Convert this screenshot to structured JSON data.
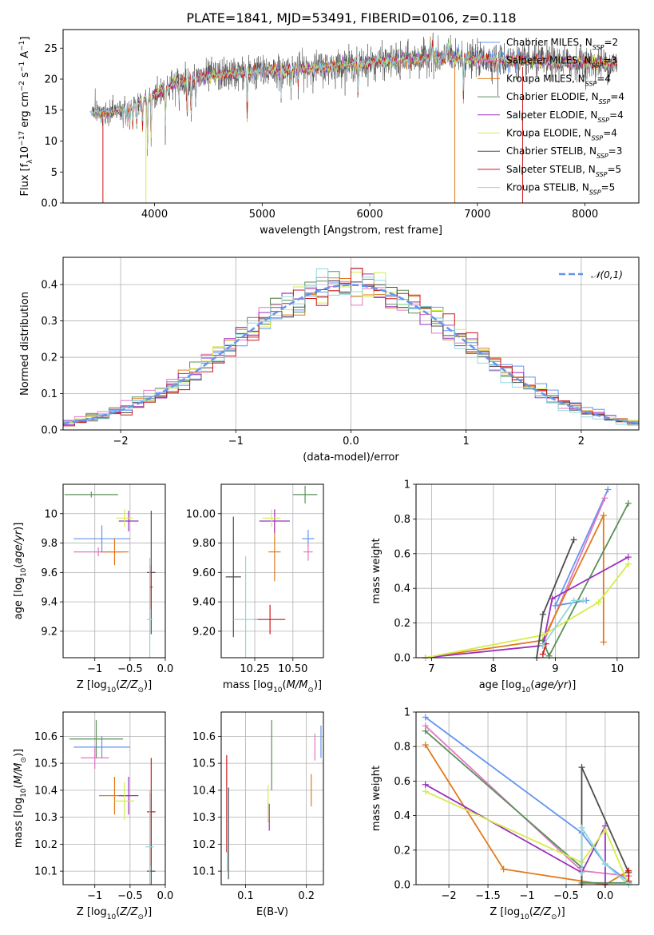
{
  "figure_title": "PLATE=1841, MJD=53491, FIBERID=0106, z=0.118",
  "models": [
    {
      "name": "Chabrier MILES",
      "nssp": "2",
      "color": "#6495ed"
    },
    {
      "name": "Salpeter MILES",
      "nssp": "3",
      "color": "#e377c2"
    },
    {
      "name": "Kroupa MILES",
      "nssp": "4",
      "color": "#e07b1b"
    },
    {
      "name": "Chabrier ELODIE",
      "nssp": "4",
      "color": "#5b8f5b"
    },
    {
      "name": "Salpeter ELODIE",
      "nssp": "4",
      "color": "#9b30c0"
    },
    {
      "name": "Kroupa ELODIE",
      "nssp": "4",
      "color": "#d4ed4a"
    },
    {
      "name": "Chabrier STELIB",
      "nssp": "3",
      "color": "#4d4d4d"
    },
    {
      "name": "Salpeter STELIB",
      "nssp": "5",
      "color": "#cc1818"
    },
    {
      "name": "Kroupa STELIB",
      "nssp": "5",
      "color": "#8fd7de"
    }
  ],
  "chart_data": [
    {
      "id": "spectrum",
      "type": "line",
      "xlabel": "wavelength [Angstrom, rest frame]",
      "ylabel": "Flux [f",
      "xlim": [
        3150,
        8500
      ],
      "ylim": [
        0,
        28
      ],
      "xticks": [
        4000,
        5000,
        6000,
        7000,
        8000
      ],
      "yticks": [
        0,
        5,
        10,
        15,
        20,
        25
      ],
      "grid": false,
      "legend": "top-right",
      "continuum": [
        [
          3400,
          14.8
        ],
        [
          3600,
          14.5
        ],
        [
          3800,
          15.6
        ],
        [
          4000,
          17.5
        ],
        [
          4200,
          19.4
        ],
        [
          4500,
          20.5
        ],
        [
          5000,
          21.3
        ],
        [
          5500,
          21.8
        ],
        [
          6000,
          22.6
        ],
        [
          6500,
          23.3
        ],
        [
          7000,
          23.2
        ],
        [
          7500,
          22.9
        ],
        [
          8000,
          22.6
        ],
        [
          8300,
          22.4
        ]
      ],
      "absorption_lines": [
        [
          3705,
          13.5
        ],
        [
          3734,
          13.2
        ],
        [
          3750,
          12.8
        ],
        [
          3771,
          12.6
        ],
        [
          3798,
          12.5
        ],
        [
          3835,
          12.4
        ],
        [
          3889,
          11.5
        ],
        [
          3934,
          8.6
        ],
        [
          3968,
          9.6
        ],
        [
          4101,
          12.8
        ],
        [
          4227,
          16.5
        ],
        [
          4304,
          13.5
        ],
        [
          4340,
          13.8
        ],
        [
          4383,
          16.0
        ],
        [
          4861,
          13.5
        ],
        [
          5015,
          19.8
        ],
        [
          5175,
          17.2
        ],
        [
          5270,
          18.5
        ],
        [
          5335,
          19.0
        ],
        [
          5890,
          17.5
        ],
        [
          6280,
          20.2
        ],
        [
          6870,
          17.0
        ],
        [
          7190,
          19.6
        ]
      ],
      "emission_lines": [
        [
          6563,
          26.5
        ],
        [
          6583,
          26.0
        ],
        [
          6716,
          25.8
        ],
        [
          6731,
          25.9
        ]
      ],
      "dropouts": [
        3520,
        3920,
        6790,
        7420
      ]
    },
    {
      "id": "residuals",
      "type": "step",
      "xlabel": "(data-model)/error",
      "ylabel": "Normed distribution",
      "xlim": [
        -2.5,
        2.5
      ],
      "ylim": [
        0,
        0.475
      ],
      "xticks": [
        -2,
        -1,
        0,
        1,
        2
      ],
      "yticks": [
        0.0,
        0.1,
        0.2,
        0.3,
        0.4
      ],
      "grid": true,
      "legend": "top-right",
      "normal_curve": {
        "mean": 0,
        "sigma": 1,
        "label": "𝒩(0,1)",
        "color": "#6495ed"
      }
    },
    {
      "id": "age-vs-Z",
      "type": "errorbar",
      "xlabel": "Z [log",
      "ylabel": "age  [log",
      "xlim": [
        -1.45,
        0.0
      ],
      "ylim": [
        9.02,
        10.2
      ],
      "xticks": [
        -1.0,
        -0.5,
        0.0
      ],
      "yticks": [
        9.2,
        9.4,
        9.6,
        9.8,
        10.0
      ],
      "grid": true,
      "points": [
        {
          "m": 0,
          "x": -0.9,
          "xe": 0.4,
          "y": 9.83,
          "ye": 0.09
        },
        {
          "m": 1,
          "x": -0.95,
          "xe": 0.35,
          "y": 9.74,
          "ye": 0.03
        },
        {
          "m": 2,
          "x": -0.72,
          "xe": 0.2,
          "y": 9.74,
          "ye": 0.09
        },
        {
          "m": 3,
          "x": -1.05,
          "xe": 0.38,
          "y": 10.13,
          "ye": 0.02
        },
        {
          "m": 4,
          "x": -0.52,
          "xe": 0.14,
          "y": 9.95,
          "ye": 0.07
        },
        {
          "m": 5,
          "x": -0.58,
          "xe": 0.12,
          "y": 9.97,
          "ye": 0.06
        },
        {
          "m": 6,
          "x": -0.2,
          "xe": 0.06,
          "y": 9.6,
          "ye": 0.42
        },
        {
          "m": 7,
          "x": -0.2,
          "xe": 0.02,
          "y": 9.5,
          "ye": 0.15
        },
        {
          "m": 8,
          "x": -0.22,
          "xe": 0.04,
          "y": 9.28,
          "ye": 0.42
        }
      ]
    },
    {
      "id": "age-vs-mass",
      "type": "errorbar",
      "xlabel": "mass [log",
      "ylabel": "",
      "xlim": [
        10.03,
        10.7
      ],
      "ylim": [
        9.02,
        10.2
      ],
      "xticks": [
        10.25,
        10.5
      ],
      "yticks": [
        9.2,
        9.4,
        9.6,
        9.8,
        10.0
      ],
      "grid": true,
      "points": [
        {
          "m": 0,
          "x": 10.6,
          "xe": 0.04,
          "y": 9.83,
          "ye": 0.06
        },
        {
          "m": 1,
          "x": 10.6,
          "xe": 0.03,
          "y": 9.74,
          "ye": 0.06
        },
        {
          "m": 2,
          "x": 10.38,
          "xe": 0.04,
          "y": 9.74,
          "ye": 0.2
        },
        {
          "m": 3,
          "x": 10.58,
          "xe": 0.08,
          "y": 10.13,
          "ye": 0.06
        },
        {
          "m": 4,
          "x": 10.38,
          "xe": 0.1,
          "y": 9.95,
          "ye": 0.08
        },
        {
          "m": 5,
          "x": 10.36,
          "xe": 0.06,
          "y": 9.97,
          "ye": 0.06
        },
        {
          "m": 6,
          "x": 10.11,
          "xe": 0.05,
          "y": 9.57,
          "ye": 0.41
        },
        {
          "m": 7,
          "x": 10.35,
          "xe": 0.1,
          "y": 9.28,
          "ye": 0.1
        },
        {
          "m": 8,
          "x": 10.19,
          "xe": 0.08,
          "y": 9.28,
          "ye": 0.43
        }
      ]
    },
    {
      "id": "weight-vs-age",
      "type": "line",
      "xlabel": "age  [log",
      "ylabel": "mass weight",
      "xlim": [
        6.75,
        10.35
      ],
      "ylim": [
        0,
        1
      ],
      "xticks": [
        7,
        8,
        9,
        10
      ],
      "yticks": [
        0.0,
        0.2,
        0.4,
        0.6,
        0.8,
        1.0
      ],
      "grid": true,
      "series": [
        {
          "m": 0,
          "x": [
            9.5,
            9.0,
            9.85
          ],
          "y": [
            0.33,
            0.3,
            0.97
          ]
        },
        {
          "m": 1,
          "x": [
            8.8,
            9.8
          ],
          "y": [
            0.08,
            0.92
          ]
        },
        {
          "m": 2,
          "x": [
            6.9,
            8.8,
            9.78,
            9.78
          ],
          "y": [
            0.0,
            0.1,
            0.82,
            0.09
          ]
        },
        {
          "m": 3,
          "x": [
            8.8,
            8.9,
            10.18
          ],
          "y": [
            0.1,
            0.01,
            0.89
          ]
        },
        {
          "m": 4,
          "x": [
            6.9,
            8.8,
            8.95,
            10.18
          ],
          "y": [
            0.0,
            0.07,
            0.34,
            0.58
          ]
        },
        {
          "m": 5,
          "x": [
            6.9,
            8.8,
            9.7,
            10.18
          ],
          "y": [
            0.0,
            0.13,
            0.32,
            0.54
          ]
        },
        {
          "m": 6,
          "x": [
            8.7,
            8.8,
            9.3
          ],
          "y": [
            0.0,
            0.25,
            0.68
          ]
        },
        {
          "m": 7,
          "x": [
            8.8,
            8.85
          ],
          "y": [
            0.02,
            0.08
          ]
        },
        {
          "m": 8,
          "x": [
            8.8,
            9.3,
            9.45
          ],
          "y": [
            0.07,
            0.33,
            0.33
          ]
        }
      ]
    },
    {
      "id": "mass-vs-Z",
      "type": "errorbar",
      "xlabel": "Z [log",
      "ylabel": "mass [log",
      "xlim": [
        -1.45,
        0.0
      ],
      "ylim": [
        10.05,
        10.69
      ],
      "xticks": [
        -1.0,
        -0.5,
        0.0
      ],
      "yticks": [
        10.1,
        10.2,
        10.3,
        10.4,
        10.5,
        10.6
      ],
      "grid": true,
      "points": [
        {
          "m": 0,
          "x": -0.9,
          "xe": 0.4,
          "y": 10.56,
          "ye": 0.04
        },
        {
          "m": 1,
          "x": -1.0,
          "xe": 0.2,
          "y": 10.52,
          "ye": 0.04
        },
        {
          "m": 2,
          "x": -0.72,
          "xe": 0.22,
          "y": 10.38,
          "ye": 0.07
        },
        {
          "m": 3,
          "x": -0.98,
          "xe": 0.38,
          "y": 10.59,
          "ye": 0.07
        },
        {
          "m": 4,
          "x": -0.52,
          "xe": 0.14,
          "y": 10.38,
          "ye": 0.07
        },
        {
          "m": 5,
          "x": -0.58,
          "xe": 0.14,
          "y": 10.36,
          "ye": 0.07
        },
        {
          "m": 6,
          "x": -0.2,
          "xe": 0.06,
          "y": 10.1,
          "ye": 0.29
        },
        {
          "m": 7,
          "x": -0.2,
          "xe": 0.06,
          "y": 10.32,
          "ye": 0.2
        },
        {
          "m": 8,
          "x": -0.22,
          "xe": 0.06,
          "y": 10.19,
          "ye": 0.21
        }
      ]
    },
    {
      "id": "mass-vs-ebv",
      "type": "errorbar",
      "xlabel": "E(B-V)",
      "ylabel": "",
      "xlim": [
        0.06,
        0.228
      ],
      "ylim": [
        10.05,
        10.69
      ],
      "xticks": [
        0.1,
        0.2
      ],
      "yticks": [
        10.1,
        10.2,
        10.3,
        10.4,
        10.5,
        10.6
      ],
      "grid": true,
      "points": [
        {
          "m": 0,
          "x": 0.224,
          "xe": 0,
          "y": 10.58,
          "ye": 0.06
        },
        {
          "m": 1,
          "x": 0.214,
          "xe": 0,
          "y": 10.56,
          "ye": 0.05
        },
        {
          "m": 2,
          "x": 0.208,
          "xe": 0,
          "y": 10.4,
          "ye": 0.06
        },
        {
          "m": 3,
          "x": 0.143,
          "xe": 0,
          "y": 10.53,
          "ye": 0.13
        },
        {
          "m": 4,
          "x": 0.139,
          "xe": 0,
          "y": 10.3,
          "ye": 0.05
        },
        {
          "m": 5,
          "x": 0.137,
          "xe": 0,
          "y": 10.35,
          "ye": 0.07
        },
        {
          "m": 6,
          "x": 0.072,
          "xe": 0,
          "y": 10.24,
          "ye": 0.17
        },
        {
          "m": 7,
          "x": 0.069,
          "xe": 0,
          "y": 10.35,
          "ye": 0.18
        },
        {
          "m": 8,
          "x": 0.07,
          "xe": 0,
          "y": 10.26,
          "ye": 0.16
        }
      ]
    },
    {
      "id": "weight-vs-Z",
      "type": "line",
      "xlabel": "Z [log",
      "ylabel": "mass weight",
      "xlim": [
        -2.42,
        0.43
      ],
      "ylim": [
        0,
        1
      ],
      "xticks": [
        -2.0,
        -1.5,
        -1.0,
        -0.5,
        0.0
      ],
      "yticks": [
        0.0,
        0.2,
        0.4,
        0.6,
        0.8,
        1.0
      ],
      "grid": true,
      "series": [
        {
          "m": 0,
          "x": [
            -2.3,
            -0.3,
            0.0,
            0.3
          ],
          "y": [
            0.97,
            0.3,
            0.12,
            0.02
          ]
        },
        {
          "m": 1,
          "x": [
            -2.3,
            -0.3,
            0.3
          ],
          "y": [
            0.92,
            0.08,
            0.05
          ]
        },
        {
          "m": 2,
          "x": [
            -2.3,
            -1.3,
            0.0,
            0.3
          ],
          "y": [
            0.81,
            0.09,
            0.0,
            0.08
          ]
        },
        {
          "m": 3,
          "x": [
            -2.3,
            -0.3,
            -0.3,
            0.3
          ],
          "y": [
            0.89,
            0.1,
            0.01,
            0.01
          ]
        },
        {
          "m": 4,
          "x": [
            -2.3,
            -0.3,
            0.0,
            0.0
          ],
          "y": [
            0.58,
            0.07,
            0.34,
            0.0
          ]
        },
        {
          "m": 5,
          "x": [
            -2.3,
            -0.3,
            0.0,
            0.3
          ],
          "y": [
            0.54,
            0.13,
            0.32,
            0.0
          ]
        },
        {
          "m": 6,
          "x": [
            -0.3,
            -0.3,
            0.3
          ],
          "y": [
            0.0,
            0.68,
            0.07
          ]
        },
        {
          "m": 7,
          "x": [
            0.3,
            0.3
          ],
          "y": [
            0.02,
            0.08
          ]
        },
        {
          "m": 8,
          "x": [
            -0.3,
            -0.3,
            0.0,
            0.3
          ],
          "y": [
            0.07,
            0.33,
            0.12,
            0.0
          ]
        }
      ]
    }
  ]
}
